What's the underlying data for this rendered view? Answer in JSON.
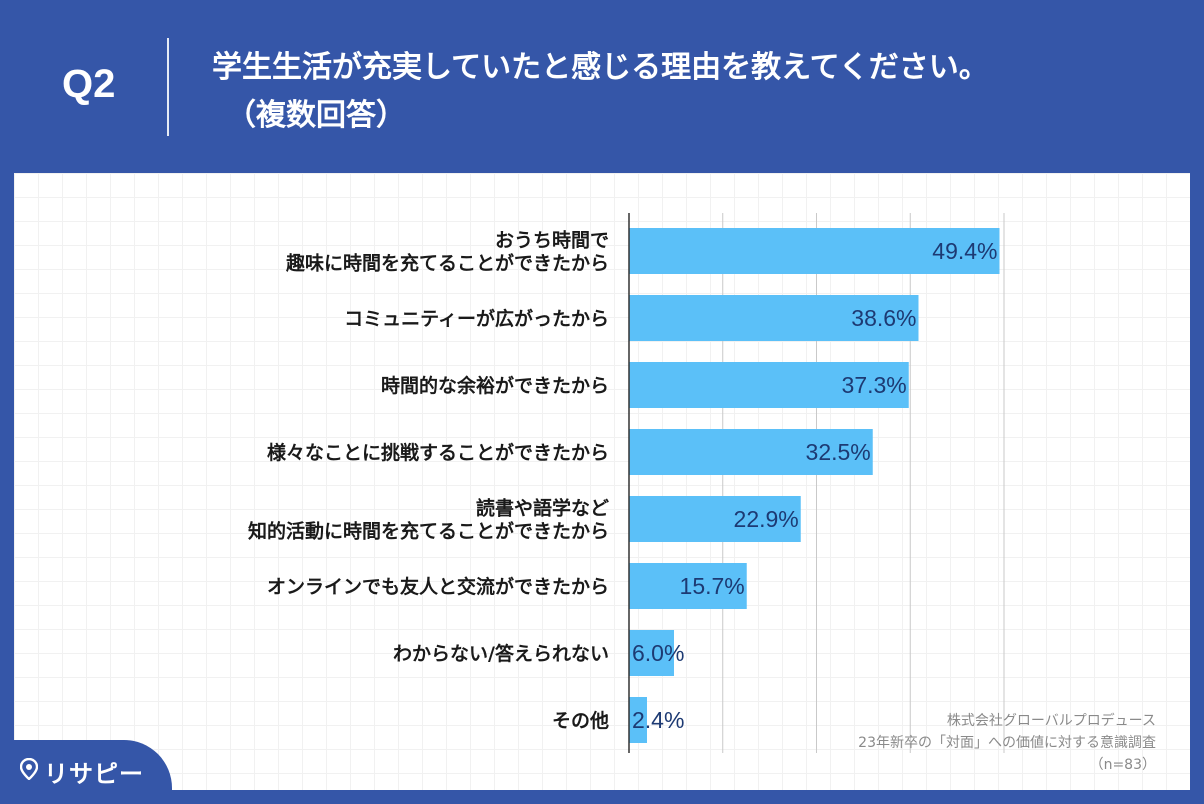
{
  "header": {
    "question_number": "Q2",
    "title_line1": "学生生活が充実していたと感じる理由を教えてください。",
    "title_line2": "（複数回答）"
  },
  "source": {
    "company": "株式会社グローバルプロデュース",
    "survey": "23年新卒の「対面」への価値に対する意識調査",
    "sample": "（n=83）"
  },
  "brand": {
    "logo_text": "リサピー",
    "logo_icon": "map-pin-icon",
    "background_color": "#3556a8",
    "bar_color": "#5bc0f8"
  },
  "chart_data": {
    "type": "bar",
    "orientation": "horizontal",
    "categories": [
      [
        "おうち時間で",
        "趣味に時間を充てることができたから"
      ],
      [
        "コミュニティーが広がったから"
      ],
      [
        "時間的な余裕ができたから"
      ],
      [
        "様々なことに挑戦することができたから"
      ],
      [
        "読書や語学など",
        "知的活動に時間を充てることができたから"
      ],
      [
        "オンラインでも友人と交流ができたから"
      ],
      [
        "わからない/答えられない"
      ],
      [
        "その他"
      ]
    ],
    "values": [
      49.4,
      38.6,
      37.3,
      32.5,
      22.9,
      15.7,
      6.0,
      2.4
    ],
    "value_labels": [
      "49.4%",
      "38.6%",
      "37.3%",
      "32.5%",
      "22.9%",
      "15.7%",
      "6.0%",
      "2.4%"
    ],
    "xlim": [
      0,
      50
    ],
    "grid": true,
    "gridlines_at": [
      12.5,
      25,
      37.5,
      50
    ],
    "legend": "none"
  }
}
